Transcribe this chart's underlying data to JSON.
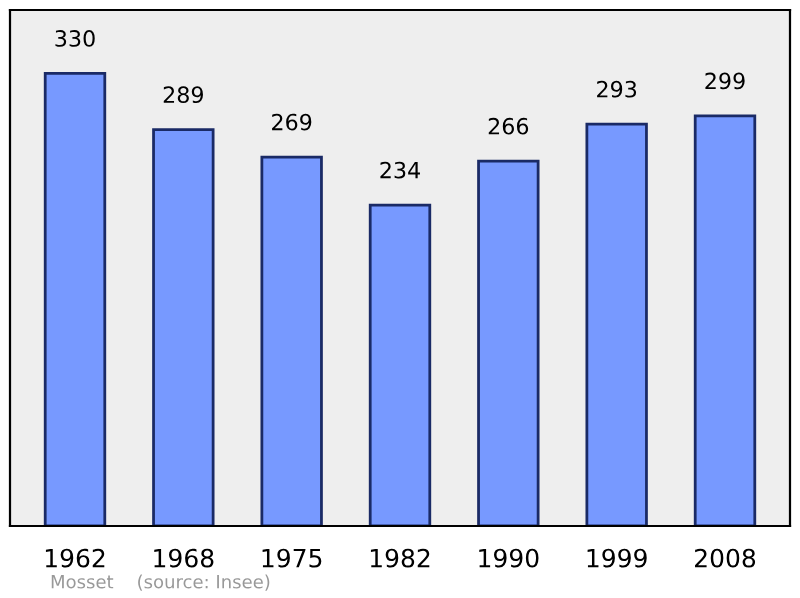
{
  "chart_data": {
    "type": "bar",
    "categories": [
      "1962",
      "1968",
      "1975",
      "1982",
      "1990",
      "1999",
      "2008"
    ],
    "values": [
      330,
      289,
      269,
      234,
      266,
      293,
      299
    ],
    "color": "#7799ff",
    "data_labels": true,
    "grid": false,
    "legend": false,
    "annotations": [
      "Mosset    (source: Insee)"
    ]
  }
}
